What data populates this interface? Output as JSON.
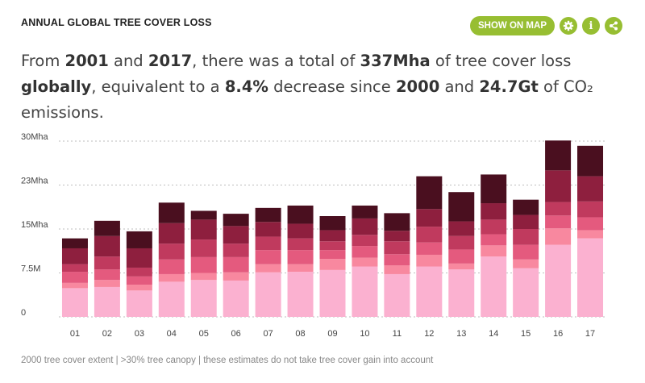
{
  "widget": {
    "title": "ANNUAL GLOBAL TREE COVER LOSS",
    "show_on_map_label": "SHOW ON MAP",
    "icons": [
      "gear-icon",
      "info-icon",
      "share-icon"
    ]
  },
  "summary": {
    "p1": "From ",
    "start_year": "2001",
    "p2": " and ",
    "end_year": "2017",
    "p3": ", there was a total of ",
    "total": "337Mha",
    "p4": " of tree cover loss ",
    "scope": "globally",
    "p5": ", equivalent to a ",
    "percent": "8.4%",
    "p6": " decrease since ",
    "base_year": "2000",
    "p7": " and ",
    "emissions": "24.7Gt",
    "p8": " of CO₂ emissions."
  },
  "footnote": "2000 tree cover extent | >30% tree canopy | these estimates do not take tree cover gain into account",
  "chart_data": {
    "type": "bar",
    "stacked": true,
    "categories": [
      "01",
      "02",
      "03",
      "04",
      "05",
      "06",
      "07",
      "08",
      "09",
      "10",
      "11",
      "12",
      "13",
      "14",
      "15",
      "16",
      "17"
    ],
    "y_tick_labels": [
      "0",
      "7.5M",
      "15Mha",
      "23Mha",
      "30Mha"
    ],
    "y_tick_values": [
      0,
      7.5,
      15,
      22.5,
      30
    ],
    "ylim": [
      0,
      30
    ],
    "grid": true,
    "colors": [
      "#fbb1d0",
      "#f8889f",
      "#e45a7e",
      "#c03a5e",
      "#8e1f3e",
      "#4a0f1f"
    ],
    "series": [
      {
        "values": [
          4.9,
          5.1,
          4.5,
          6.0,
          6.3,
          6.2,
          7.6,
          7.7,
          8.0,
          8.6,
          7.3,
          8.6,
          8.1,
          10.3,
          8.3,
          12.3,
          13.4
        ]
      },
      {
        "values": [
          0.9,
          1.2,
          1.0,
          1.3,
          1.2,
          1.4,
          1.4,
          1.3,
          1.9,
          1.5,
          1.5,
          2.0,
          1.0,
          1.9,
          1.5,
          2.8,
          1.4
        ]
      },
      {
        "values": [
          1.9,
          1.8,
          1.4,
          2.5,
          2.7,
          2.6,
          2.4,
          2.4,
          1.5,
          2.0,
          1.9,
          2.1,
          2.4,
          1.9,
          2.5,
          2.2,
          2.2
        ]
      },
      {
        "values": [
          1.3,
          2.2,
          1.5,
          2.7,
          3.0,
          2.3,
          2.3,
          2.0,
          1.5,
          1.9,
          2.2,
          2.7,
          2.3,
          2.5,
          2.7,
          2.3,
          2.7
        ]
      },
      {
        "values": [
          2.7,
          3.5,
          3.3,
          3.5,
          3.4,
          3.0,
          2.5,
          2.5,
          1.9,
          2.8,
          1.8,
          3.0,
          2.5,
          2.8,
          2.4,
          5.4,
          4.3
        ]
      },
      {
        "values": [
          1.7,
          2.6,
          2.9,
          3.5,
          1.5,
          2.1,
          2.4,
          3.1,
          2.4,
          2.2,
          3.0,
          5.6,
          5.0,
          4.9,
          2.6,
          5.1,
          5.2
        ]
      }
    ]
  }
}
